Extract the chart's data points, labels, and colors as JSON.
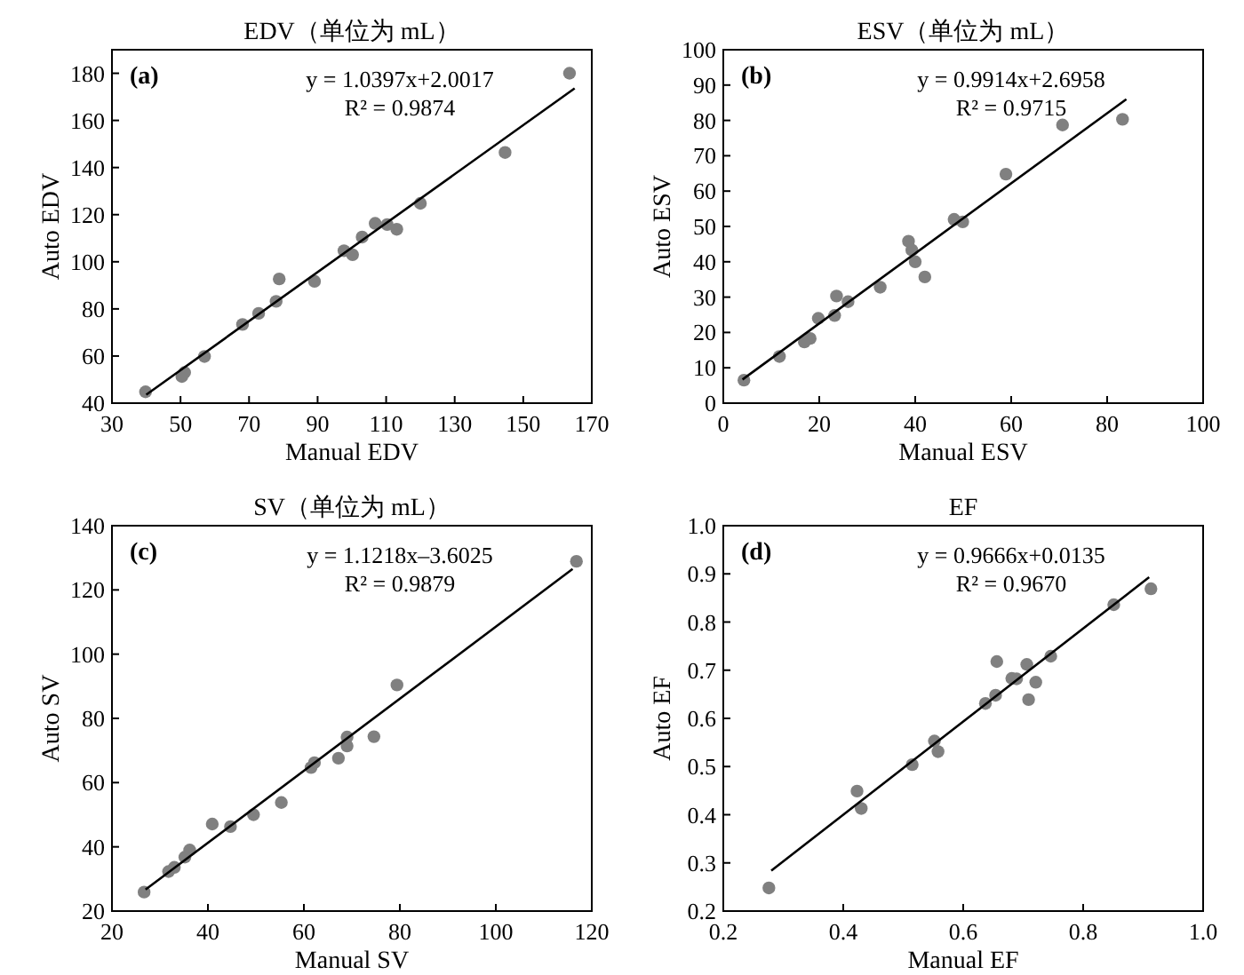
{
  "chart_data": [
    {
      "type": "scatter",
      "title": "EDV（单位为 mL）",
      "xlabel": "Manual EDV",
      "ylabel": "Auto EDV",
      "annotations": [
        "(a)",
        "y = 1.0397x+2.0017",
        "R² = 0.9874"
      ],
      "xlim": [
        30,
        170
      ],
      "ylim": [
        40,
        190
      ],
      "xticks": [
        30,
        50,
        70,
        90,
        110,
        130,
        150,
        170
      ],
      "yticks": [
        40,
        60,
        80,
        100,
        120,
        140,
        160,
        180
      ],
      "marker": "circle",
      "series": [
        {
          "type": "scatter",
          "color": "#808080",
          "x": [
            39.8,
            50.4,
            51.2,
            57.0,
            68.1,
            72.8,
            77.9,
            78.8,
            89.1,
            97.7,
            100.2,
            103.0,
            106.8,
            110.3,
            113.1,
            120.0,
            144.7,
            163.5
          ],
          "values": [
            44.8,
            51.3,
            53.0,
            59.8,
            73.4,
            78.1,
            83.2,
            92.7,
            91.7,
            104.7,
            103.0,
            110.5,
            116.3,
            115.8,
            113.8,
            124.8,
            146.4,
            180.0
          ]
        },
        {
          "type": "line",
          "color": "#000000",
          "marker": "none",
          "x": [
            40,
            165
          ],
          "values": [
            43.6,
            173.6
          ]
        }
      ]
    },
    {
      "type": "scatter",
      "title": "ESV（单位为 mL）",
      "xlabel": "Manual ESV",
      "ylabel": "Auto ESV",
      "annotations": [
        "(b)",
        "y = 0.9914x+2.6958",
        "R² = 0.9715"
      ],
      "xlim": [
        0,
        100
      ],
      "ylim": [
        0,
        100
      ],
      "xticks": [
        0,
        20,
        40,
        60,
        80,
        100
      ],
      "yticks": [
        0,
        10,
        20,
        30,
        40,
        50,
        60,
        70,
        80,
        90,
        100
      ],
      "marker": "circle",
      "series": [
        {
          "type": "scatter",
          "color": "#808080",
          "x": [
            4.3,
            11.7,
            16.9,
            18.1,
            19.8,
            23.2,
            23.6,
            26.0,
            32.7,
            38.6,
            39.3,
            40.0,
            42.0,
            48.1,
            49.9,
            58.9,
            70.7,
            83.2
          ],
          "values": [
            6.5,
            13.2,
            17.3,
            18.3,
            24.0,
            24.8,
            30.3,
            28.7,
            32.8,
            45.8,
            43.3,
            40.0,
            35.7,
            52.0,
            51.3,
            64.8,
            78.7,
            80.3
          ]
        },
        {
          "type": "line",
          "color": "#000000",
          "marker": "none",
          "x": [
            4,
            84
          ],
          "values": [
            6.7,
            86.0
          ]
        }
      ]
    },
    {
      "type": "scatter",
      "title": "SV（单位为 mL）",
      "xlabel": "Manual SV",
      "ylabel": "Auto SV",
      "annotations": [
        "(c)",
        "y = 1.1218x–3.6025",
        "R² = 0.9879"
      ],
      "xlim": [
        20,
        120
      ],
      "ylim": [
        20,
        140
      ],
      "xticks": [
        20,
        40,
        60,
        80,
        100,
        120
      ],
      "yticks": [
        20,
        40,
        60,
        80,
        100,
        120,
        140
      ],
      "marker": "circle",
      "series": [
        {
          "type": "scatter",
          "color": "#808080",
          "x": [
            26.7,
            31.8,
            33.0,
            35.2,
            36.2,
            40.9,
            44.7,
            49.5,
            55.3,
            61.5,
            62.2,
            67.2,
            69.0,
            69.0,
            74.6,
            79.4,
            116.8
          ],
          "values": [
            25.9,
            32.3,
            33.6,
            36.8,
            39.0,
            47.1,
            46.3,
            50.0,
            53.8,
            64.7,
            66.2,
            67.6,
            71.4,
            74.2,
            74.3,
            90.4,
            128.9
          ]
        },
        {
          "type": "line",
          "color": "#000000",
          "marker": "none",
          "x": [
            27,
            116
          ],
          "values": [
            26.7,
            126.5
          ]
        }
      ]
    },
    {
      "type": "scatter",
      "title": "EF",
      "xlabel": "Manual EF",
      "ylabel": "Auto EF",
      "annotations": [
        "(d)",
        "y = 0.9666x+0.0135",
        "R² = 0.9670"
      ],
      "xlim": [
        0.2,
        1
      ],
      "ylim": [
        0.2,
        1
      ],
      "xticks": [
        0.2,
        0.4,
        0.6,
        0.8,
        {
          "value": 1,
          "label": "1.0"
        }
      ],
      "yticks": [
        0.2,
        0.3,
        0.4,
        0.5,
        0.6,
        0.7,
        0.8,
        0.9,
        {
          "value": 1,
          "label": "1.0"
        }
      ],
      "marker": "circle",
      "series": [
        {
          "type": "scatter",
          "color": "#808080",
          "x": [
            0.276,
            0.423,
            0.43,
            0.515,
            0.552,
            0.558,
            0.637,
            0.654,
            0.656,
            0.681,
            0.689,
            0.706,
            0.709,
            0.721,
            0.746,
            0.851,
            0.913
          ],
          "values": [
            0.248,
            0.449,
            0.413,
            0.504,
            0.553,
            0.531,
            0.631,
            0.648,
            0.718,
            0.683,
            0.682,
            0.712,
            0.639,
            0.675,
            0.729,
            0.836,
            0.869
          ]
        },
        {
          "type": "line",
          "color": "#000000",
          "marker": "none",
          "x": [
            0.28,
            0.91
          ],
          "values": [
            0.284,
            0.893
          ]
        }
      ]
    }
  ]
}
